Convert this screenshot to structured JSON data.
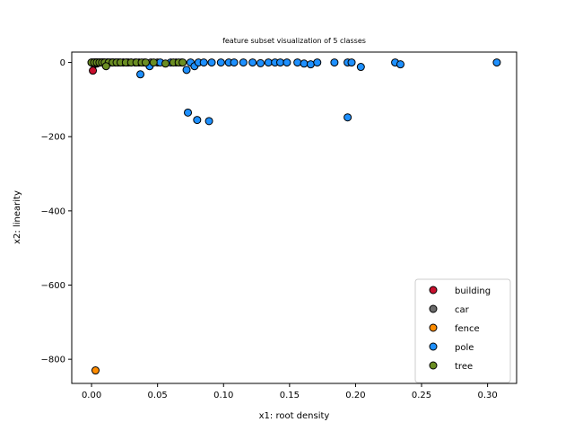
{
  "chart_data": {
    "type": "scatter",
    "title": "feature subset visualization of 5 classes",
    "xlabel": "x1: root density",
    "ylabel": "x2: linearity",
    "xlim": [
      -0.015,
      0.322
    ],
    "ylim": [
      -865,
      28
    ],
    "xticks": [
      0.0,
      0.05,
      0.1,
      0.15,
      0.2,
      0.25,
      0.3
    ],
    "xtick_labels": [
      "0.00",
      "0.05",
      "0.10",
      "0.15",
      "0.20",
      "0.25",
      "0.30"
    ],
    "yticks": [
      0,
      -200,
      -400,
      -600,
      -800
    ],
    "ytick_labels": [
      "0",
      "−200",
      "−400",
      "−600",
      "−800"
    ],
    "grid": false,
    "legend_position": "lower right",
    "series": [
      {
        "name": "building",
        "color": "#c8102e",
        "points": [
          [
            0.0,
            0
          ],
          [
            0.001,
            0
          ],
          [
            0.002,
            0
          ],
          [
            0.003,
            0
          ],
          [
            0.004,
            0
          ],
          [
            0.005,
            0
          ],
          [
            0.006,
            0
          ],
          [
            0.007,
            0
          ],
          [
            0.008,
            0
          ],
          [
            0.009,
            0
          ],
          [
            0.01,
            0
          ],
          [
            0.012,
            0
          ],
          [
            0.014,
            0
          ],
          [
            0.002,
            -5
          ],
          [
            0.001,
            -22
          ]
        ]
      },
      {
        "name": "car",
        "color": "#6b6b6b",
        "points": [
          [
            0.003,
            0
          ],
          [
            0.006,
            0
          ],
          [
            0.009,
            0
          ],
          [
            0.012,
            0
          ],
          [
            0.015,
            0
          ],
          [
            0.018,
            0
          ],
          [
            0.021,
            0
          ],
          [
            0.024,
            0
          ],
          [
            0.027,
            0
          ],
          [
            0.03,
            0
          ],
          [
            0.033,
            0
          ],
          [
            0.036,
            0
          ],
          [
            0.04,
            0
          ],
          [
            0.045,
            0
          ],
          [
            0.05,
            0
          ],
          [
            0.004,
            -3
          ],
          [
            0.01,
            -2
          ]
        ]
      },
      {
        "name": "fence",
        "color": "#ff8c00",
        "points": [
          [
            0.004,
            0
          ],
          [
            0.008,
            0
          ],
          [
            0.012,
            0
          ],
          [
            0.016,
            0
          ],
          [
            0.02,
            0
          ],
          [
            0.024,
            0
          ],
          [
            0.028,
            0
          ],
          [
            0.003,
            -830
          ]
        ]
      },
      {
        "name": "pole",
        "color": "#1e90ff",
        "points": [
          [
            0.044,
            -10
          ],
          [
            0.052,
            0
          ],
          [
            0.06,
            0
          ],
          [
            0.064,
            0
          ],
          [
            0.068,
            0
          ],
          [
            0.075,
            0
          ],
          [
            0.078,
            -10
          ],
          [
            0.081,
            0
          ],
          [
            0.085,
            0
          ],
          [
            0.091,
            0
          ],
          [
            0.098,
            0
          ],
          [
            0.104,
            0
          ],
          [
            0.108,
            0
          ],
          [
            0.115,
            0
          ],
          [
            0.122,
            0
          ],
          [
            0.128,
            -2
          ],
          [
            0.134,
            0
          ],
          [
            0.139,
            0
          ],
          [
            0.143,
            0
          ],
          [
            0.148,
            0
          ],
          [
            0.156,
            0
          ],
          [
            0.161,
            -3
          ],
          [
            0.166,
            -5
          ],
          [
            0.171,
            0
          ],
          [
            0.184,
            0
          ],
          [
            0.194,
            0
          ],
          [
            0.197,
            0
          ],
          [
            0.204,
            -12
          ],
          [
            0.23,
            0
          ],
          [
            0.234,
            -5
          ],
          [
            0.307,
            0
          ],
          [
            0.072,
            -20
          ],
          [
            0.037,
            -32
          ],
          [
            0.073,
            -135
          ],
          [
            0.08,
            -155
          ],
          [
            0.089,
            -158
          ],
          [
            0.194,
            -148
          ]
        ]
      },
      {
        "name": "tree",
        "color": "#6b8e23",
        "points": [
          [
            0.0,
            0
          ],
          [
            0.002,
            0
          ],
          [
            0.004,
            0
          ],
          [
            0.006,
            0
          ],
          [
            0.008,
            0
          ],
          [
            0.01,
            0
          ],
          [
            0.013,
            0
          ],
          [
            0.016,
            0
          ],
          [
            0.019,
            0
          ],
          [
            0.022,
            0
          ],
          [
            0.026,
            0
          ],
          [
            0.03,
            0
          ],
          [
            0.034,
            0
          ],
          [
            0.038,
            0
          ],
          [
            0.041,
            0
          ],
          [
            0.047,
            0
          ],
          [
            0.056,
            -3
          ],
          [
            0.062,
            0
          ],
          [
            0.066,
            0
          ],
          [
            0.069,
            0
          ],
          [
            0.011,
            -10
          ]
        ]
      }
    ]
  }
}
